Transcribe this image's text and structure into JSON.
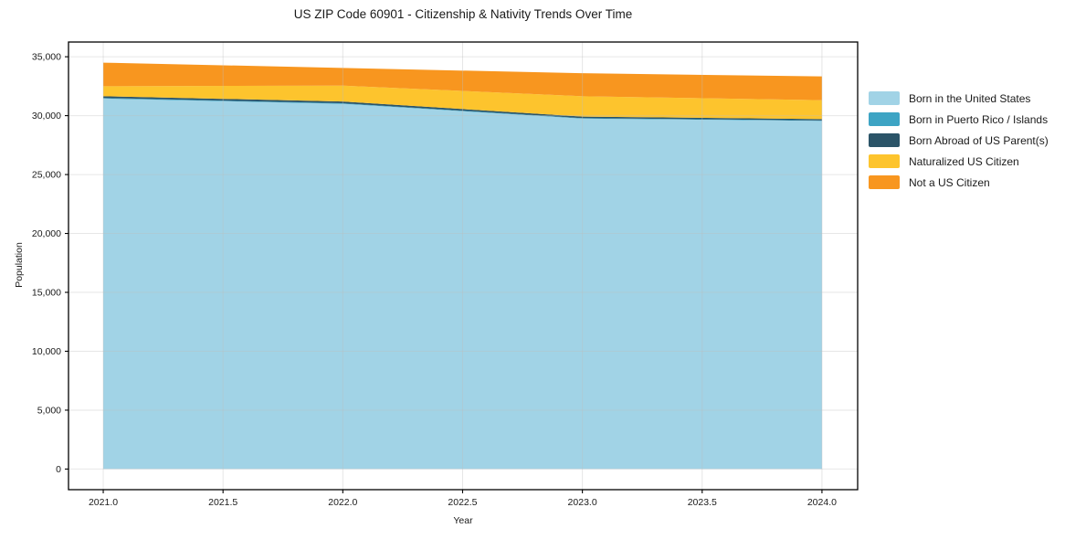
{
  "chart_data": {
    "type": "area",
    "stacked": true,
    "title": "US ZIP Code 60901 - Citizenship & Nativity Trends Over Time",
    "xlabel": "Year",
    "ylabel": "Population",
    "x": [
      2021,
      2022,
      2023,
      2024
    ],
    "series": [
      {
        "name": "Born in the United States",
        "color": "#a1d3e6",
        "values": [
          31450,
          31000,
          29750,
          29550
        ]
      },
      {
        "name": "Born in Puerto Rico / Islands",
        "color": "#3da4c4",
        "values": [
          50,
          50,
          40,
          40
        ]
      },
      {
        "name": "Born Abroad of US Parent(s)",
        "color": "#2b5468",
        "values": [
          150,
          150,
          130,
          120
        ]
      },
      {
        "name": "Naturalized US Citizen",
        "color": "#fdc42d",
        "values": [
          850,
          1350,
          1730,
          1600
        ]
      },
      {
        "name": "Not a US Citizen",
        "color": "#f8961f",
        "values": [
          2000,
          1500,
          1950,
          2020
        ]
      }
    ],
    "stack_totals": [
      34500,
      34050,
      33600,
      33330
    ],
    "xlim": [
      2020.855,
      2024.149
    ],
    "ylim": [
      -1750,
      36250
    ],
    "x_ticks": [
      2021.0,
      2021.5,
      2022.0,
      2022.5,
      2023.0,
      2023.5,
      2024.0
    ],
    "x_tick_labels": [
      "2021.0",
      "2021.5",
      "2022.0",
      "2022.5",
      "2023.0",
      "2023.5",
      "2024.0"
    ],
    "y_ticks": [
      0,
      5000,
      10000,
      15000,
      20000,
      25000,
      30000,
      35000
    ],
    "y_tick_labels": [
      "0",
      "5,000",
      "10,000",
      "15,000",
      "20,000",
      "25,000",
      "30,000",
      "35,000"
    ],
    "grid": true,
    "grid_color": "rgba(190,190,190,0.38)",
    "spine_color": "#000000",
    "background": "#ffffff",
    "legend_position": "right"
  }
}
